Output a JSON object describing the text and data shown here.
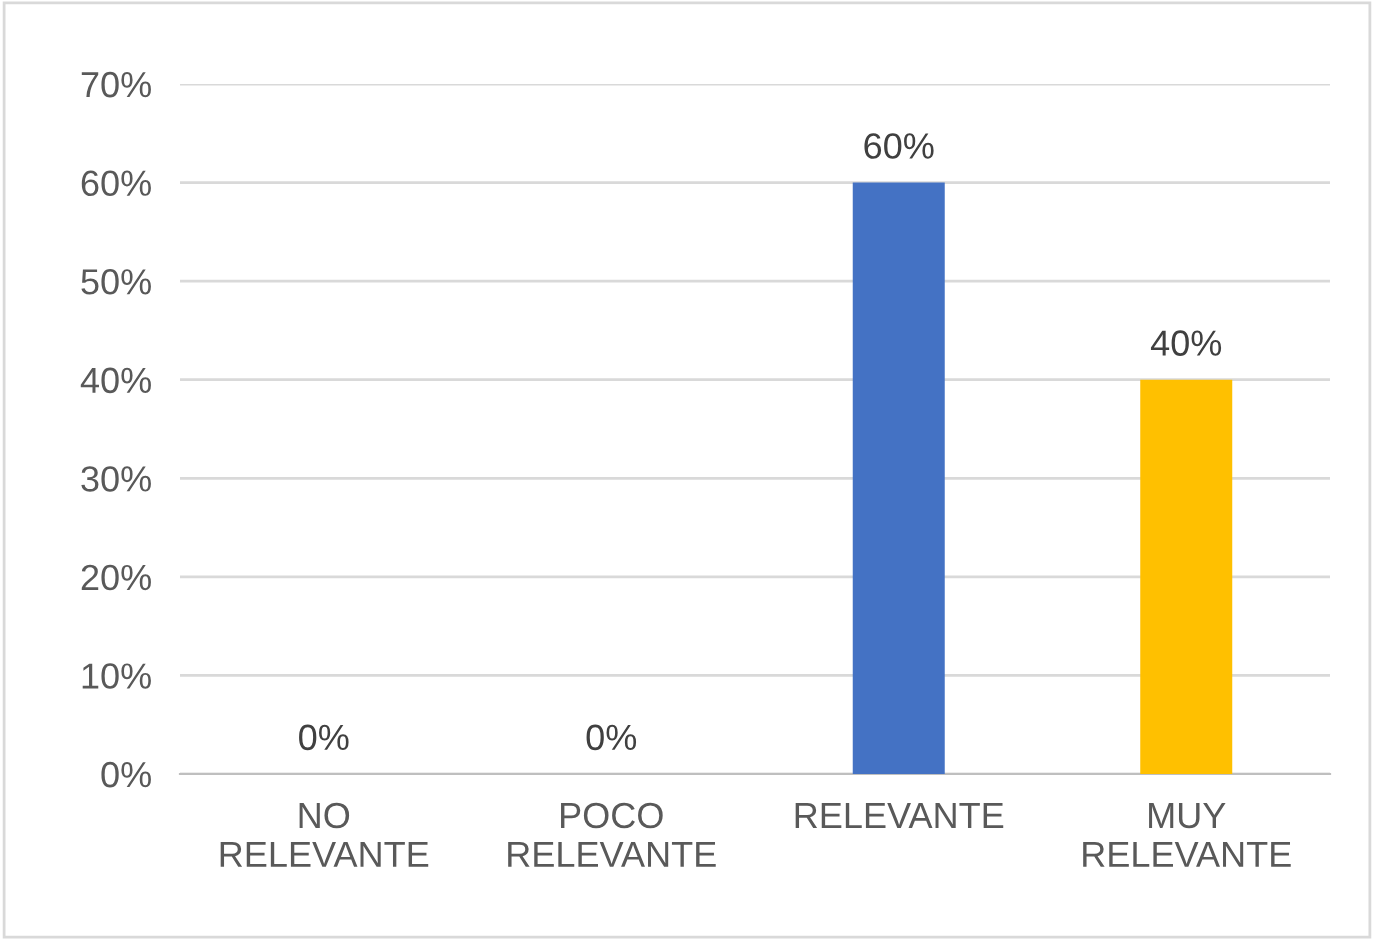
{
  "chart_data": {
    "type": "bar",
    "categories": [
      "NO\nRELEVANTE",
      "POCO\nRELEVANTE",
      "RELEVANTE",
      "MUY\nRELEVANTE"
    ],
    "values": [
      0,
      0,
      60,
      40
    ],
    "colors": [
      null,
      null,
      "#4472c4",
      "#ffc000"
    ],
    "value_labels": [
      "0%",
      "0%",
      "60%",
      "40%"
    ],
    "ylim": [
      0,
      70
    ],
    "yticks": [
      {
        "value": 0,
        "label": "0%"
      },
      {
        "value": 10,
        "label": "10%"
      },
      {
        "value": 20,
        "label": "20%"
      },
      {
        "value": 30,
        "label": "30%"
      },
      {
        "value": 40,
        "label": "40%"
      },
      {
        "value": 50,
        "label": "50%"
      },
      {
        "value": 60,
        "label": "60%"
      },
      {
        "value": 70,
        "label": "70%"
      }
    ],
    "grid": "y",
    "legend": false
  }
}
